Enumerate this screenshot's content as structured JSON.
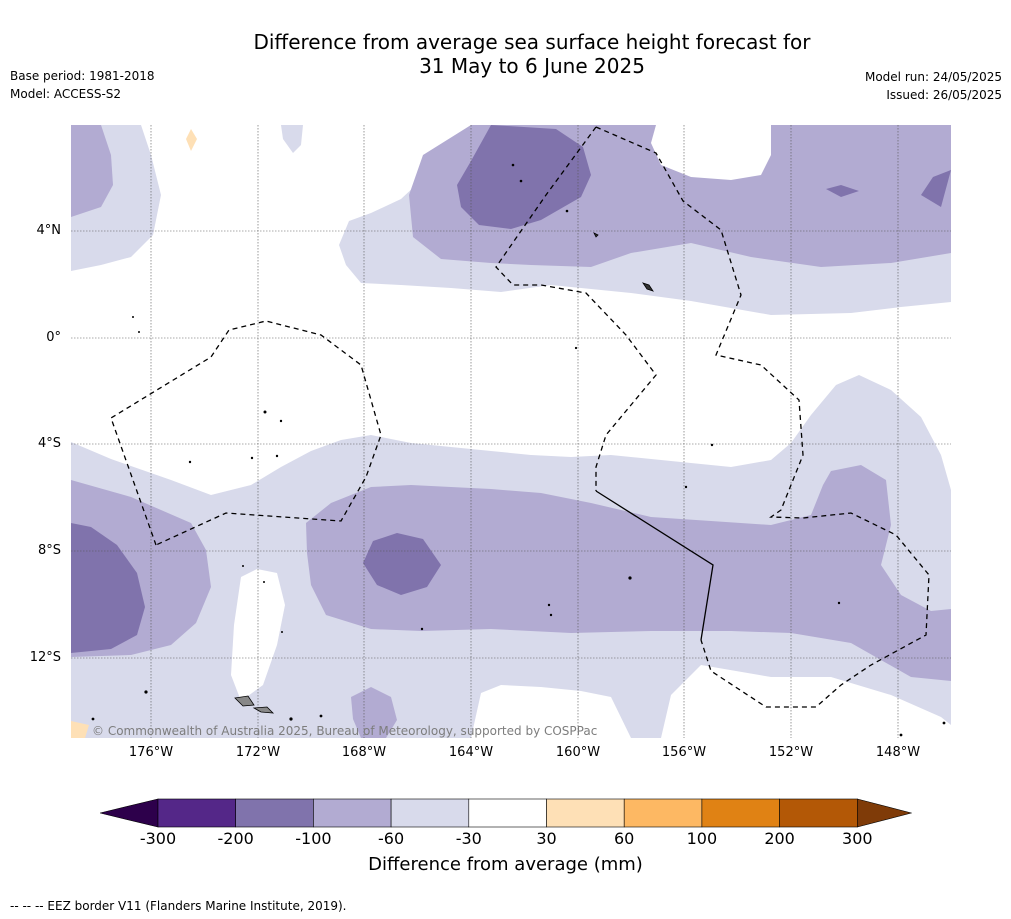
{
  "title": {
    "line1": "Difference from average sea surface height forecast for",
    "line2": "31 May to 6 June 2025"
  },
  "meta_left": {
    "base_period": "Base period: 1981-2018",
    "model": "Model: ACCESS-S2"
  },
  "meta_right": {
    "model_run": "Model run: 24/05/2025",
    "issued": "Issued: 26/05/2025"
  },
  "map": {
    "latitude_labels": [
      "4°N",
      "0°",
      "4°S",
      "8°S",
      "12°S"
    ],
    "longitude_labels": [
      "176°W",
      "172°W",
      "168°W",
      "164°W",
      "160°W",
      "156°W",
      "152°W",
      "148°W"
    ],
    "copyright": "© Commonwealth of Australia 2025, Bureau of Meteorology, supported by COSPPac",
    "gridlines": true
  },
  "colorbar": {
    "tick_labels": [
      "-300",
      "-200",
      "-100",
      "-60",
      "-30",
      "30",
      "60",
      "100",
      "200",
      "300"
    ],
    "label": "Difference from average (mm)",
    "colors": {
      "below_min": "#2d004b",
      "bins": [
        "#542788",
        "#8073ac",
        "#b2abd2",
        "#d8daeb",
        "#ffffff",
        "#fee0b6",
        "#fdb863",
        "#e08214",
        "#b35806"
      ],
      "above_max": "#7f3b08"
    }
  },
  "footnote": "--  --  -- EEZ border V11 (Flanders Marine Institute, 2019)."
}
